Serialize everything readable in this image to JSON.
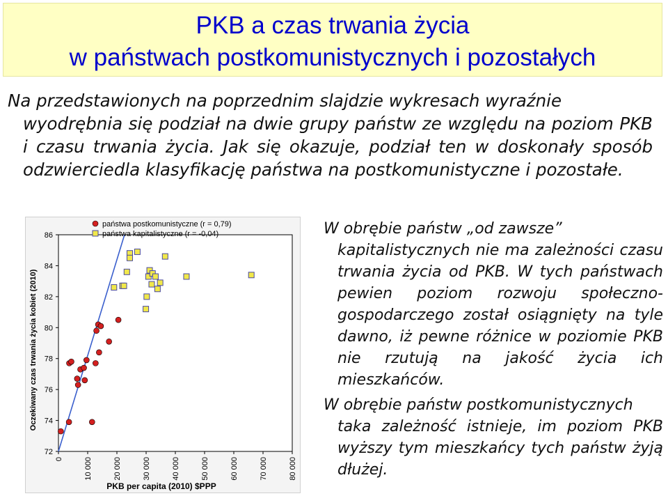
{
  "title": {
    "line1": "PKB a czas trwania życia",
    "line2": "w państwach postkomunistycznych i pozostałych"
  },
  "intro": {
    "line1": "Na przedstawionych na poprzednim slajdzie wykresach wyraźnie",
    "rest": "wyodrębnia się podział na dwie grupy państw ze względu na poziom PKB i czasu trwania życia. Jak się okazuje, podział ten w doskonały sposób odzwierciedla klasyfikację państwa na postkomunistyczne i pozostałe."
  },
  "right": {
    "p1_first": "W obrębie państw „od zawsze”",
    "p1_rest": "kapitalistycznych nie ma zależności czasu trwania życia od PKB. W tych państwach pewien poziom rozwoju społeczno-gospodarczego został osiągnięty na tyle dawno, iż pewne różnice w poziomie PKB nie rzutują na jakość życia ich mieszkańców.",
    "p2_first": "W obrębie państw postkomunistycznych",
    "p2_rest": "taka zależność istnieje, im poziom PKB wyższy tym mieszkańcy tych państw żyją dłużej."
  },
  "chart_data": {
    "type": "scatter",
    "xlabel": "PKB per capita (2010) $PPP",
    "ylabel": "Oczekiwany czas trwania życia kobiet (2010)",
    "xlim": [
      0,
      80000
    ],
    "ylim": [
      72,
      86
    ],
    "x_ticks": [
      0,
      10000,
      20000,
      30000,
      40000,
      50000,
      60000,
      70000,
      80000
    ],
    "x_tick_labels": [
      "0",
      "10 000",
      "20 000",
      "30 000",
      "40 000",
      "50 000",
      "60 000",
      "70 000",
      "80 000"
    ],
    "y_ticks": [
      72,
      74,
      76,
      78,
      80,
      82,
      84,
      86
    ],
    "y_tick_labels": [
      "72",
      "74",
      "76",
      "78",
      "80",
      "82",
      "84",
      "86"
    ],
    "grid": false,
    "legend_position": "top",
    "series": [
      {
        "name": "państwa postkomunistyczne (r = 0,79)",
        "marker": "circle",
        "color": "#d42020",
        "points": [
          [
            800,
            73.3
          ],
          [
            3600,
            73.9
          ],
          [
            3700,
            77.7
          ],
          [
            4400,
            77.8
          ],
          [
            6400,
            76.7
          ],
          [
            6700,
            76.3
          ],
          [
            7500,
            77.3
          ],
          [
            8700,
            77.4
          ],
          [
            9000,
            76.6
          ],
          [
            9600,
            77.9
          ],
          [
            11500,
            73.9
          ],
          [
            12700,
            77.7
          ],
          [
            13000,
            79.8
          ],
          [
            13600,
            80.2
          ],
          [
            14500,
            80.1
          ],
          [
            13900,
            78.4
          ],
          [
            17300,
            79.1
          ],
          [
            20500,
            80.5
          ]
        ]
      },
      {
        "name": "państwa kapitalistyczne (r = -0,04)",
        "marker": "square",
        "color": "#f1e84a",
        "points": [
          [
            19000,
            82.6
          ],
          [
            21900,
            82.7
          ],
          [
            22400,
            82.7
          ],
          [
            23400,
            83.6
          ],
          [
            24400,
            84.8
          ],
          [
            24400,
            84.5
          ],
          [
            27000,
            84.9
          ],
          [
            29900,
            81.2
          ],
          [
            30200,
            82.0
          ],
          [
            30800,
            83.3
          ],
          [
            31200,
            83.7
          ],
          [
            31900,
            82.8
          ],
          [
            32200,
            83.5
          ],
          [
            33200,
            83.3
          ],
          [
            33900,
            82.5
          ],
          [
            34800,
            82.9
          ],
          [
            36500,
            84.6
          ],
          [
            43800,
            83.3
          ],
          [
            66000,
            83.4
          ]
        ]
      }
    ],
    "regression_line": {
      "color": "#3a5fcd",
      "x": [
        0,
        22600
      ],
      "y": [
        72.0,
        86.0
      ]
    }
  }
}
